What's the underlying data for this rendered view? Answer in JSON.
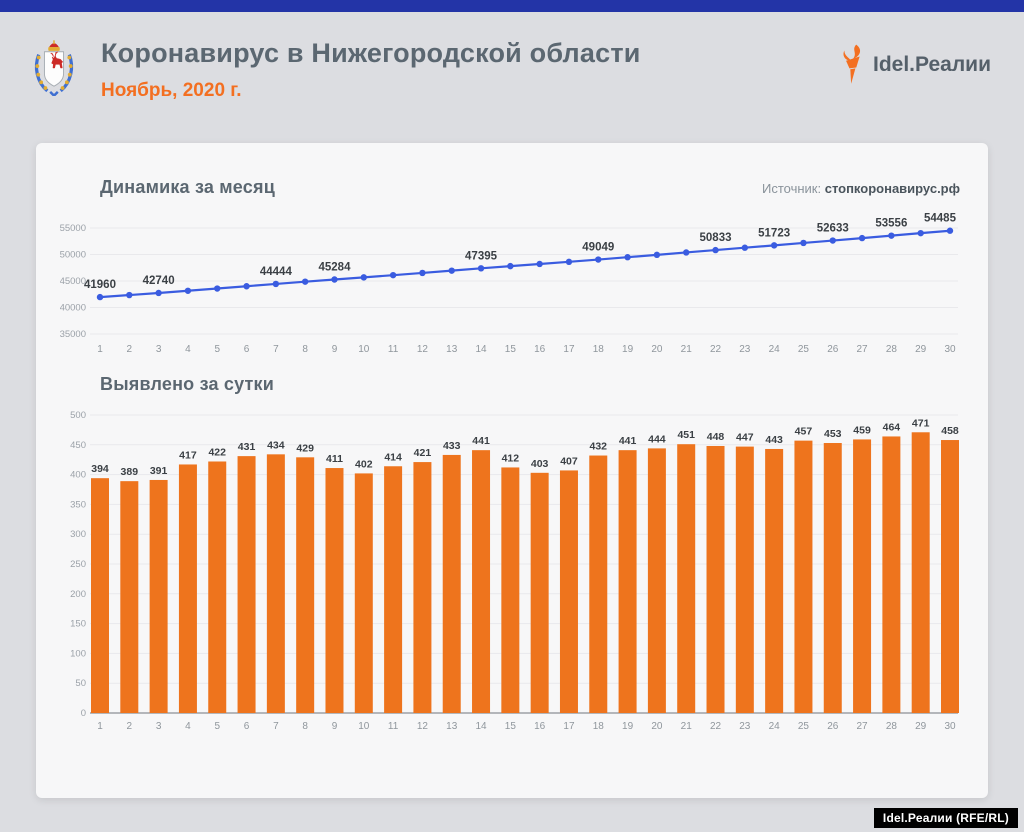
{
  "header": {
    "title": "Коронавирус в Нижегородской области",
    "subtitle": "Ноябрь, 2020 г.",
    "emblem_icon": "nizhny-novgorod-coat-of-arms",
    "logo_icon": "torch-icon",
    "logo_text": "Idel.Реалии"
  },
  "source": {
    "label": "Источник:",
    "value": "стопкоронавирус.рф"
  },
  "footer": {
    "credit": "Idel.Реалии (RFE/RL)"
  },
  "colors": {
    "accent_bar_blue": "#2334a7",
    "line_blue": "#3a5ce0",
    "bar_orange": "#ee741d",
    "subtitle_orange": "#f36f21",
    "title_gray": "#5b6771",
    "axis_tick_gray": "#9ba1a8",
    "value_label_dark": "#3b4045",
    "gridline": "#e9e9ec",
    "baseline": "#b4b6ba",
    "card_bg": "#f7f7f8",
    "page_bg": "#dcdde1"
  },
  "chart_data": [
    {
      "type": "line",
      "title": "Динамика за месяц",
      "x": [
        1,
        2,
        3,
        4,
        5,
        6,
        7,
        8,
        9,
        10,
        11,
        12,
        13,
        14,
        15,
        16,
        17,
        18,
        19,
        20,
        21,
        22,
        23,
        24,
        25,
        26,
        27,
        28,
        29,
        30
      ],
      "values": [
        41960,
        42349,
        42740,
        43157,
        43579,
        44010,
        44444,
        44873,
        45284,
        45686,
        46100,
        46521,
        46954,
        47395,
        47807,
        48210,
        48617,
        49049,
        49490,
        49934,
        50385,
        50833,
        51280,
        51723,
        52180,
        52633,
        53092,
        53556,
        54027,
        54485
      ],
      "labeled_days": [
        1,
        3,
        7,
        9,
        14,
        18,
        22,
        24,
        26,
        28,
        30
      ],
      "xlabel": "",
      "ylabel": "",
      "ylim": [
        35000,
        55000
      ],
      "ytick_step": 5000,
      "grid": true,
      "legend": "none"
    },
    {
      "type": "bar",
      "title": "Выявлено за сутки",
      "categories": [
        1,
        2,
        3,
        4,
        5,
        6,
        7,
        8,
        9,
        10,
        11,
        12,
        13,
        14,
        15,
        16,
        17,
        18,
        19,
        20,
        21,
        22,
        23,
        24,
        25,
        26,
        27,
        28,
        29,
        30
      ],
      "values": [
        394,
        389,
        391,
        417,
        422,
        431,
        434,
        429,
        411,
        402,
        414,
        421,
        433,
        441,
        412,
        403,
        407,
        432,
        441,
        444,
        451,
        448,
        447,
        443,
        457,
        453,
        459,
        464,
        471,
        458
      ],
      "bar_labels": true,
      "xlabel": "",
      "ylabel": "",
      "ylim": [
        0,
        500
      ],
      "ytick_step": 50,
      "grid": true,
      "legend": "none"
    }
  ]
}
